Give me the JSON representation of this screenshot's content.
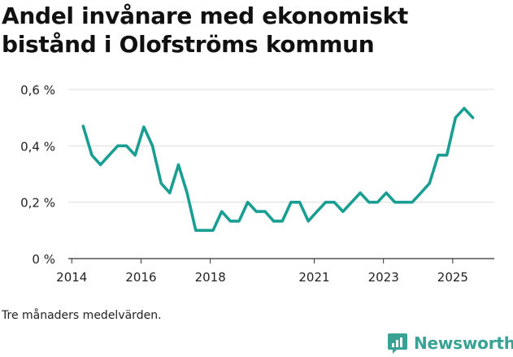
{
  "chart_data": {
    "type": "line",
    "title": "Andel invånare med ekonomiskt bistånd i Olofströms kommun",
    "xlabel": "",
    "ylabel": "",
    "y_ticks": [
      {
        "value": 0,
        "label": "0 %"
      },
      {
        "value": 0.2,
        "label": "0,2 %"
      },
      {
        "value": 0.4,
        "label": "0,4 %"
      },
      {
        "value": 0.6,
        "label": "0,6 %"
      }
    ],
    "x_ticks": [
      {
        "value": 2014,
        "label": "2014"
      },
      {
        "value": 2016,
        "label": "2016"
      },
      {
        "value": 2018,
        "label": "2018"
      },
      {
        "value": 2021,
        "label": "2021"
      },
      {
        "value": 2023,
        "label": "2023"
      },
      {
        "value": 2025,
        "label": "2025"
      }
    ],
    "xlim": [
      2013.9,
      2026.2
    ],
    "ylim": [
      0,
      0.6
    ],
    "grid": true,
    "series": [
      {
        "name": "Andel invånare med ekonomiskt bistånd",
        "color": "#1a9e92",
        "x": [
          2014.33,
          2014.58,
          2014.83,
          2015.08,
          2015.33,
          2015.58,
          2015.83,
          2016.08,
          2016.33,
          2016.58,
          2016.83,
          2017.08,
          2017.33,
          2017.58,
          2017.83,
          2018.08,
          2018.33,
          2018.58,
          2018.83,
          2019.08,
          2019.33,
          2019.58,
          2019.83,
          2020.08,
          2020.33,
          2020.58,
          2020.83,
          2021.08,
          2021.33,
          2021.58,
          2021.83,
          2022.08,
          2022.33,
          2022.58,
          2022.83,
          2023.08,
          2023.33,
          2023.58,
          2023.83,
          2024.08,
          2024.33,
          2024.58,
          2024.83,
          2025.08,
          2025.33,
          2025.58
        ],
        "values": [
          0.47,
          0.367,
          0.333,
          0.367,
          0.4,
          0.4,
          0.367,
          0.467,
          0.4,
          0.267,
          0.233,
          0.333,
          0.233,
          0.1,
          0.1,
          0.1,
          0.167,
          0.133,
          0.133,
          0.2,
          0.167,
          0.167,
          0.133,
          0.133,
          0.2,
          0.2,
          0.133,
          0.167,
          0.2,
          0.2,
          0.167,
          0.2,
          0.233,
          0.2,
          0.2,
          0.233,
          0.2,
          0.2,
          0.2,
          0.233,
          0.267,
          0.367,
          0.367,
          0.5,
          0.533,
          0.5
        ]
      }
    ],
    "footnote": "Tre månaders medelvärden."
  },
  "brand": {
    "name": "Newsworthy",
    "icon": "newsworthy-logo-icon",
    "color": "#38a394"
  }
}
